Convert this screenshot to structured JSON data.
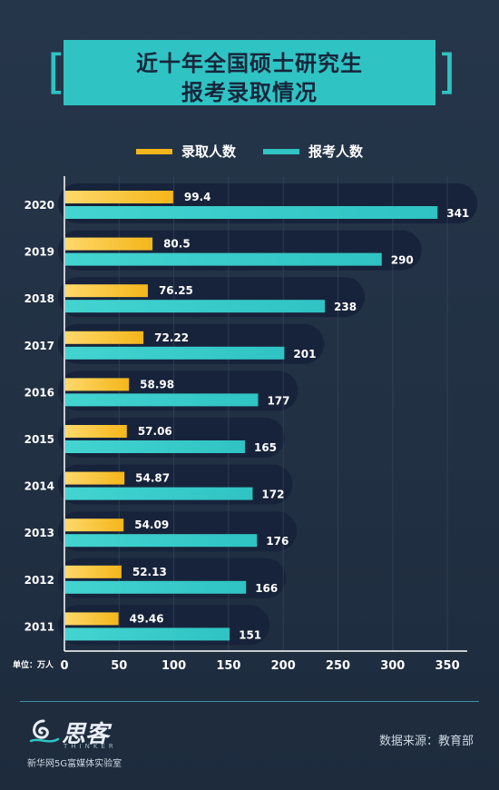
{
  "title": {
    "line1": "近十年全国硕士研究生",
    "line2": "报考录取情况"
  },
  "colors": {
    "admitted": "#f4b61a",
    "applicants": "#2fc3c4",
    "track": "#17233a",
    "title_bg": "#2fc3c4"
  },
  "chart_data": {
    "type": "bar",
    "orientation": "horizontal",
    "categories": [
      "2020",
      "2019",
      "2018",
      "2017",
      "2016",
      "2015",
      "2014",
      "2013",
      "2012",
      "2011"
    ],
    "series": [
      {
        "name": "录取人数",
        "values": [
          99.4,
          80.5,
          76.25,
          72.22,
          58.98,
          57.06,
          54.87,
          54.09,
          52.13,
          49.46
        ],
        "labels": [
          "99.4",
          "80.5",
          "76.25",
          "72.22",
          "58.98",
          "57.06",
          "54.87",
          "54.09",
          "52.13",
          "49.46"
        ]
      },
      {
        "name": "报考人数",
        "values": [
          341,
          290,
          238,
          201,
          177,
          165,
          172,
          176,
          166,
          151
        ],
        "labels": [
          "341",
          "290",
          "238",
          "201",
          "177",
          "165",
          "172",
          "176",
          "166",
          "151"
        ]
      }
    ],
    "xlim": [
      0,
      350
    ],
    "xticks": [
      "0",
      "50",
      "100",
      "150",
      "200",
      "250",
      "300",
      "350"
    ],
    "unit_label": "单位：万人",
    "grid": true,
    "legend": "top-center"
  },
  "footer": {
    "logo_text": "思客",
    "logo_sub": "THINKER",
    "org": "新华网5G富媒体实验室",
    "source": "数据来源：教育部"
  }
}
